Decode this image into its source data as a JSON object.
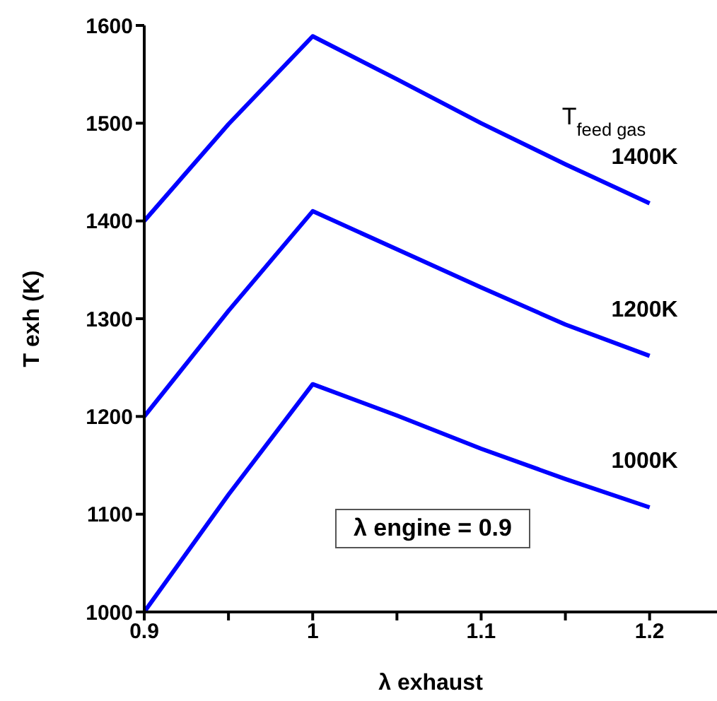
{
  "chart_data": {
    "type": "line",
    "xlabel": "λ exhaust",
    "ylabel": "T exh (K)",
    "legend_title": "T$_{feed gas}$",
    "annotations": [
      "λ engine = 0.9"
    ],
    "x": [
      0.9,
      0.95,
      1.0,
      1.05,
      1.1,
      1.15,
      1.2
    ],
    "series": [
      {
        "name": "1400K",
        "color": "#0000ff",
        "values": [
          1400,
          1499,
          1589,
          1545,
          1500,
          1458,
          1418
        ]
      },
      {
        "name": "1200K",
        "color": "#0000ff",
        "values": [
          1200,
          1308,
          1410,
          1371,
          1332,
          1294,
          1262
        ]
      },
      {
        "name": "1000K",
        "color": "#0000ff",
        "values": [
          1000,
          1120,
          1233,
          1201,
          1167,
          1136,
          1107
        ]
      }
    ],
    "xlim": [
      0.9,
      1.24
    ],
    "xticks": [
      0.9,
      {
        "value": 0.95,
        "label": null
      },
      1,
      {
        "value": 1.05,
        "label": null
      },
      1.1,
      {
        "value": 1.15,
        "label": null
      },
      1.2
    ],
    "ylim": [
      1000,
      1600
    ],
    "yticks": [
      1000,
      1100,
      1200,
      1300,
      1400,
      1500,
      1600
    ],
    "grid": false,
    "marker": "none",
    "line_style": "solid"
  }
}
